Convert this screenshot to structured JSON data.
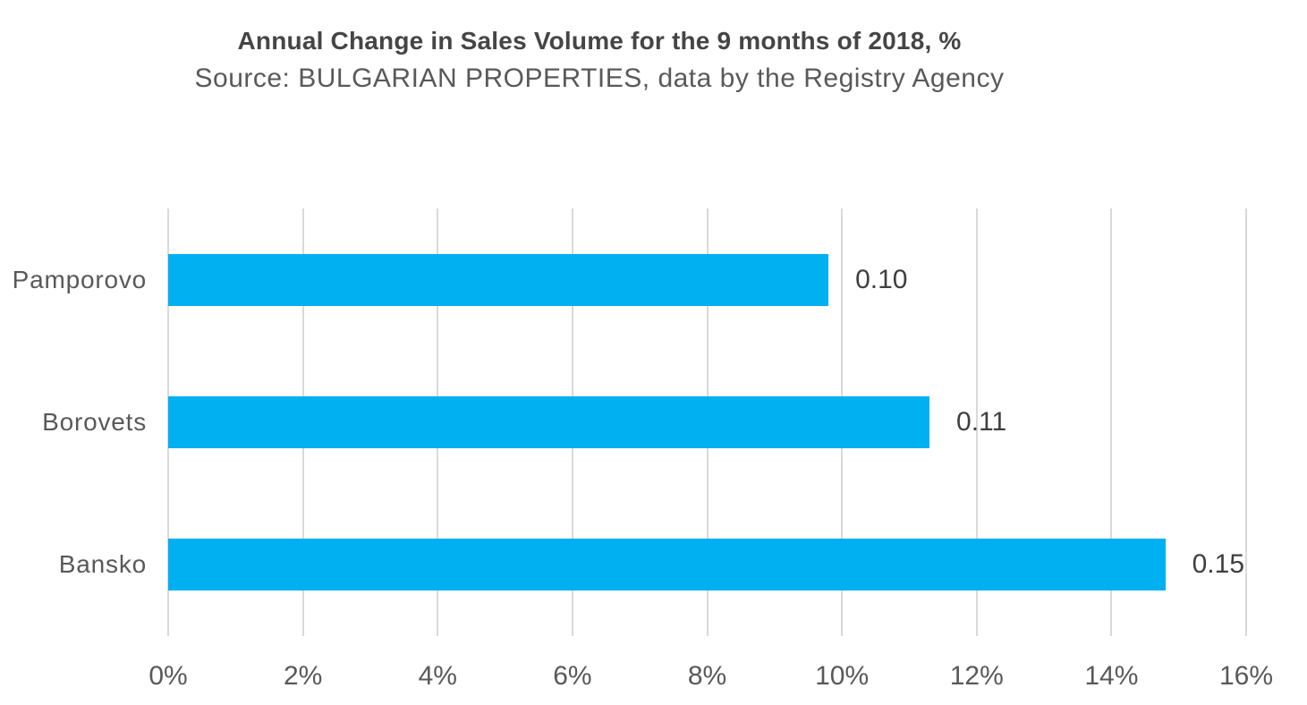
{
  "header": {
    "title": "Annual Change in Sales Volume for the 9 months of 2018, %",
    "subtitle": "Source: BULGARIAN PROPERTIES, data by the Registry Agency"
  },
  "chart_data": {
    "type": "bar",
    "orientation": "horizontal",
    "title": "Annual Change in Sales Volume for the 9 months of 2018, %",
    "subtitle": "Source: BULGARIAN PROPERTIES, data by the Registry Agency",
    "categories": [
      "Pamporovo",
      "Borovets",
      "Bansko"
    ],
    "values": [
      0.098,
      0.113,
      0.148
    ],
    "value_labels": [
      "0.10",
      "0.11",
      "0.15"
    ],
    "xlim": [
      0,
      0.16
    ],
    "x_ticks": [
      "0%",
      "2%",
      "4%",
      "6%",
      "8%",
      "10%",
      "12%",
      "14%",
      "16%"
    ],
    "grid": "vertical-only",
    "legend": "none",
    "colors": {
      "bar": "#00B0F0",
      "gridline": "#D9D9D9",
      "title_text": "#454545",
      "axis_text": "#595959",
      "value_label_text": "#3F3F3F"
    }
  }
}
